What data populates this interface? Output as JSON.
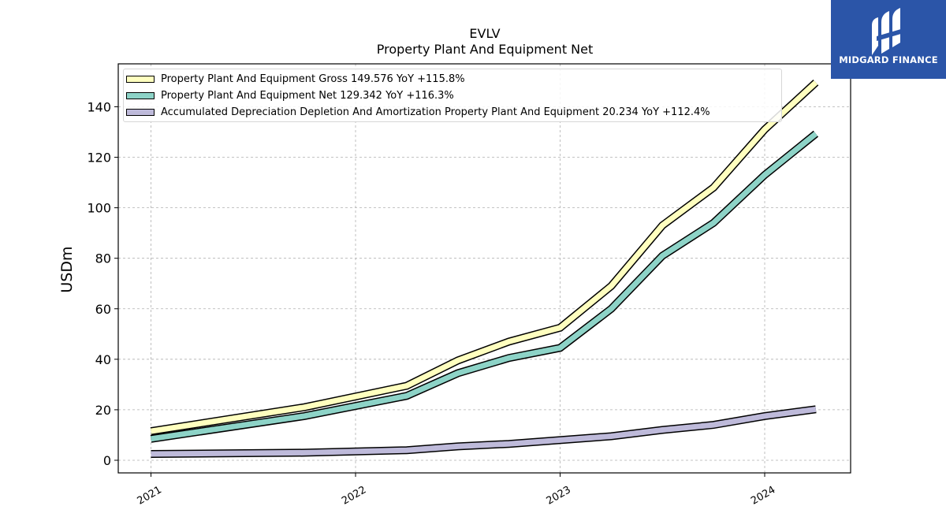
{
  "logo": {
    "text": "MIDGARD FINANCE",
    "icon": "midgard-logo-icon",
    "bg_color": "#2b55a8"
  },
  "chart_data": {
    "type": "line",
    "title": "EVLV",
    "subtitle": "Property Plant And Equipment Net",
    "xlabel": "",
    "ylabel": "USDm",
    "xlim": [
      2020.84,
      2024.42
    ],
    "ylim": [
      -5,
      157
    ],
    "x_ticks": [
      2021,
      2022,
      2023,
      2024
    ],
    "x_tick_labels": [
      "2021",
      "2022",
      "2023",
      "2024"
    ],
    "y_ticks": [
      0,
      20,
      40,
      60,
      80,
      100,
      120,
      140
    ],
    "y_tick_labels": [
      "0",
      "20",
      "40",
      "60",
      "80",
      "100",
      "120",
      "140"
    ],
    "grid": true,
    "legend_position": "top-left",
    "x": [
      2021.0,
      2021.75,
      2022.25,
      2022.5,
      2022.75,
      2023.0,
      2023.25,
      2023.5,
      2023.75,
      2024.0,
      2024.25
    ],
    "series": [
      {
        "name": "Property Plant And Equipment Gross",
        "legend_label": "Property Plant And Equipment Gross  149.576 YoY +115.8%",
        "color": "#ffffbf",
        "values": [
          11.5,
          21.0,
          29.5,
          39.5,
          47.0,
          52.5,
          69.0,
          93.0,
          108.0,
          131.0,
          149.6
        ]
      },
      {
        "name": "Property Plant And Equipment Net",
        "legend_label": "Property Plant And Equipment Net  129.342 YoY +116.3%",
        "color": "#8dd3c7",
        "values": [
          8.5,
          17.5,
          25.5,
          34.5,
          40.5,
          44.5,
          60.0,
          81.0,
          94.0,
          113.0,
          129.3
        ]
      },
      {
        "name": "Accumulated Depreciation Depletion And Amortization Property Plant And Equipment",
        "legend_label": "Accumulated Depreciation Depletion And Amortization Property Plant And Equipment  20.234 YoY +112.4%",
        "color": "#bebada",
        "values": [
          2.5,
          3.0,
          4.0,
          5.5,
          6.5,
          8.0,
          9.5,
          12.0,
          14.0,
          17.5,
          20.2
        ]
      }
    ]
  }
}
